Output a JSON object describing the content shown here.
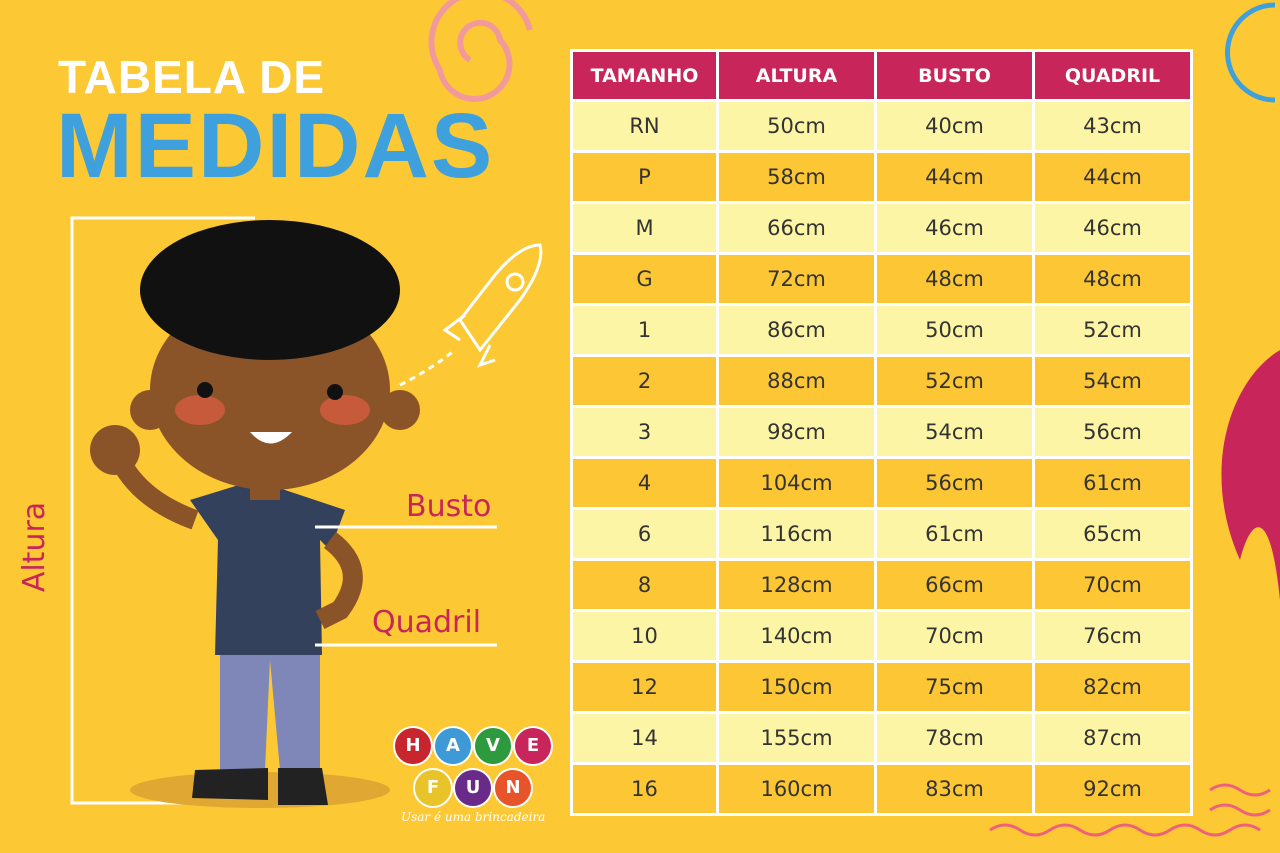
{
  "title": {
    "line1": "TABELA DE",
    "line2": "MEDIDAS"
  },
  "labels": {
    "height": "Altura",
    "bust": "Busto",
    "hip": "Quadril"
  },
  "table": {
    "headers": [
      "TAMANHO",
      "ALTURA",
      "BUSTO",
      "QUADRIL"
    ],
    "rows": [
      [
        "RN",
        "50cm",
        "40cm",
        "43cm"
      ],
      [
        "P",
        "58cm",
        "44cm",
        "44cm"
      ],
      [
        "M",
        "66cm",
        "46cm",
        "46cm"
      ],
      [
        "G",
        "72cm",
        "48cm",
        "48cm"
      ],
      [
        "1",
        "86cm",
        "50cm",
        "52cm"
      ],
      [
        "2",
        "88cm",
        "52cm",
        "54cm"
      ],
      [
        "3",
        "98cm",
        "54cm",
        "56cm"
      ],
      [
        "4",
        "104cm",
        "56cm",
        "61cm"
      ],
      [
        "6",
        "116cm",
        "61cm",
        "65cm"
      ],
      [
        "8",
        "128cm",
        "66cm",
        "70cm"
      ],
      [
        "10",
        "140cm",
        "70cm",
        "76cm"
      ],
      [
        "12",
        "150cm",
        "75cm",
        "82cm"
      ],
      [
        "14",
        "155cm",
        "78cm",
        "87cm"
      ],
      [
        "16",
        "160cm",
        "83cm",
        "92cm"
      ]
    ]
  },
  "logo": {
    "letters": [
      "H",
      "A",
      "V",
      "E",
      "F",
      "U",
      "N"
    ],
    "colors": [
      "#c8262e",
      "#3e9ad6",
      "#2e9a3e",
      "#c8265b",
      "#e8c42a",
      "#6a2a8a",
      "#e8542a"
    ],
    "tagline": "Usar é uma brincadeira"
  },
  "colors": {
    "background": "#fcc934",
    "header": "#c8265b",
    "title_blue": "#3ea0dc",
    "row_dark": "#fcc634",
    "row_light": "#fdf5a6"
  }
}
